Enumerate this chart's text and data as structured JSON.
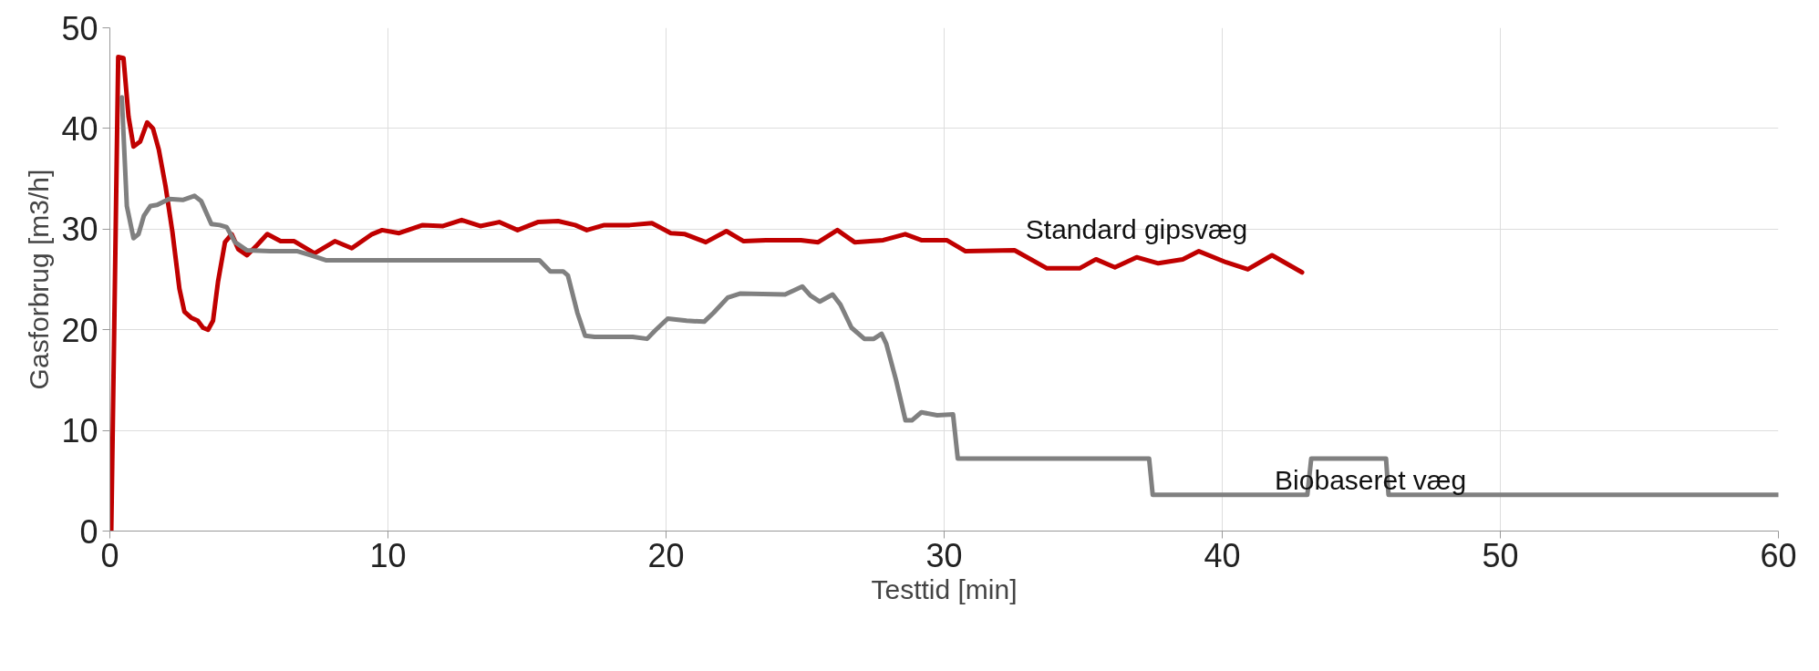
{
  "chart_data": {
    "type": "line",
    "xlabel": "Testtid [min]",
    "ylabel": "Gasforbrug [m3/h]",
    "xlim": [
      0,
      60
    ],
    "ylim": [
      0,
      50
    ],
    "xticks": [
      0,
      10,
      20,
      30,
      40,
      50,
      60
    ],
    "yticks": [
      0,
      10,
      20,
      30,
      40,
      50
    ],
    "grid": true,
    "marker": "none",
    "line_style": "solid",
    "series": [
      {
        "name": "Standard gipsvæg",
        "color": "#c00000",
        "x": [
          0.05,
          0.3,
          0.49,
          0.67,
          0.85,
          1.09,
          1.34,
          1.55,
          1.76,
          2.0,
          2.25,
          2.5,
          2.68,
          2.92,
          3.16,
          3.35,
          3.53,
          3.71,
          3.89,
          4.14,
          4.38,
          4.62,
          4.93,
          5.29,
          5.66,
          6.14,
          6.63,
          7.36,
          8.09,
          8.7,
          9.43,
          9.79,
          10.4,
          11.25,
          11.98,
          12.65,
          13.32,
          14.0,
          14.66,
          15.39,
          16.12,
          16.73,
          17.15,
          17.78,
          18.69,
          19.49,
          20.17,
          20.68,
          21.43,
          22.17,
          22.79,
          23.59,
          24.85,
          25.47,
          26.16,
          26.78,
          27.81,
          28.6,
          29.18,
          30.09,
          30.77,
          32.53,
          33.7,
          34.87,
          35.46,
          36.14,
          36.92,
          37.7,
          38.58,
          39.16,
          40.14,
          40.92,
          41.79,
          42.87
        ],
        "values": [
          0,
          47.1,
          47.0,
          41.2,
          38.2,
          38.7,
          40.6,
          40,
          37.9,
          34.3,
          29.7,
          24.1,
          21.8,
          21.2,
          20.9,
          20.2,
          20.0,
          20.9,
          24.8,
          28.7,
          29.5,
          28.0,
          27.4,
          28.4,
          29.5,
          28.8,
          28.8,
          27.6,
          28.8,
          28.1,
          29.5,
          29.9,
          29.6,
          30.4,
          30.3,
          30.9,
          30.3,
          30.7,
          29.9,
          30.7,
          30.8,
          30.4,
          29.9,
          30.4,
          30.4,
          30.6,
          29.6,
          29.5,
          28.7,
          29.8,
          28.8,
          28.9,
          28.9,
          28.7,
          29.9,
          28.7,
          28.9,
          29.5,
          28.9,
          28.9,
          27.8,
          27.9,
          26.1,
          26.1,
          27.0,
          26.2,
          27.2,
          26.6,
          27.0,
          27.8,
          26.7,
          26.0,
          27.4,
          25.7
        ]
      },
      {
        "name": "Biobaseret væg",
        "color": "#808080",
        "x": [
          0.43,
          0.61,
          0.85,
          1.03,
          1.22,
          1.46,
          1.7,
          2.13,
          2.62,
          3.04,
          3.28,
          3.65,
          3.95,
          4.2,
          4.5,
          4.93,
          5.78,
          6.75,
          7.24,
          7.79,
          8.2,
          15.45,
          15.84,
          16.3,
          16.47,
          16.81,
          17.09,
          17.43,
          18.8,
          19.32,
          19.6,
          20.06,
          20.74,
          21.37,
          21.71,
          22.22,
          22.68,
          24.28,
          24.9,
          25.19,
          25.53,
          25.99,
          26.27,
          26.67,
          27.13,
          27.47,
          27.75,
          27.92,
          28.27,
          28.61,
          28.84,
          29.18,
          29.75,
          30.32,
          30.49,
          37.37,
          37.5,
          43.06,
          43.2,
          45.89,
          45.98,
          60.0
        ],
        "values": [
          43.1,
          32.3,
          29.1,
          29.5,
          31.3,
          32.3,
          32.4,
          33.0,
          32.9,
          33.3,
          32.8,
          30.5,
          30.4,
          30.2,
          28.7,
          27.9,
          27.8,
          27.8,
          27.4,
          26.9,
          26.9,
          26.9,
          25.8,
          25.8,
          25.4,
          21.7,
          19.4,
          19.3,
          19.3,
          19.1,
          19.9,
          21.1,
          20.9,
          20.8,
          21.7,
          23.2,
          23.6,
          23.5,
          24.3,
          23.4,
          22.8,
          23.5,
          22.5,
          20.2,
          19.1,
          19.1,
          19.6,
          18.6,
          15.0,
          11.0,
          11.0,
          11.8,
          11.5,
          11.6,
          7.2,
          7.2,
          3.6,
          3.6,
          7.2,
          7.2,
          3.6,
          3.6
        ]
      }
    ]
  }
}
